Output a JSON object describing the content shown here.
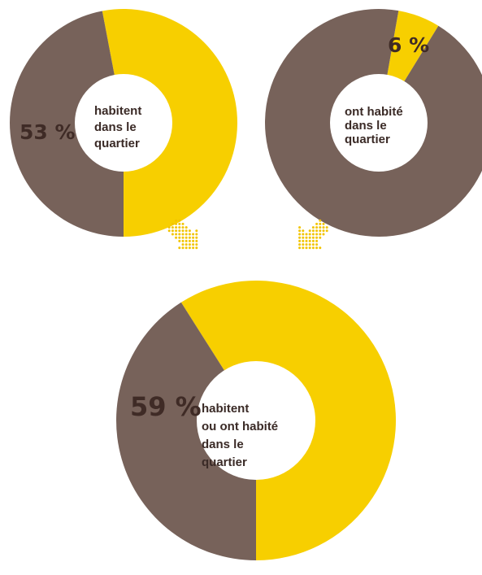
{
  "colors": {
    "yellow": "#f7cf00",
    "brown": "#77625a",
    "center": "#ffffff",
    "dots": "#f2c400",
    "text_dark": "#3f2b26"
  },
  "chart_data": [
    {
      "type": "pie",
      "variant": "donut",
      "slices": [
        {
          "label": "53 %",
          "value": 53,
          "color": "#f7cf00"
        },
        {
          "label": "",
          "value": 47,
          "color": "#77625a"
        }
      ],
      "center_text": [
        "habitent",
        "dans le",
        "quartier"
      ]
    },
    {
      "type": "pie",
      "variant": "donut",
      "slices": [
        {
          "label": "6 %",
          "value": 6,
          "color": "#f7cf00"
        },
        {
          "label": "",
          "value": 94,
          "color": "#77625a"
        }
      ],
      "center_text": [
        "ont habité",
        "dans le",
        "quartier"
      ]
    },
    {
      "type": "pie",
      "variant": "donut",
      "slices": [
        {
          "label": "59 %",
          "value": 59,
          "color": "#f7cf00"
        },
        {
          "label": "",
          "value": 41,
          "color": "#77625a"
        }
      ],
      "center_text": [
        "habitent",
        "ou ont habité",
        "dans le",
        "quartier"
      ]
    }
  ]
}
